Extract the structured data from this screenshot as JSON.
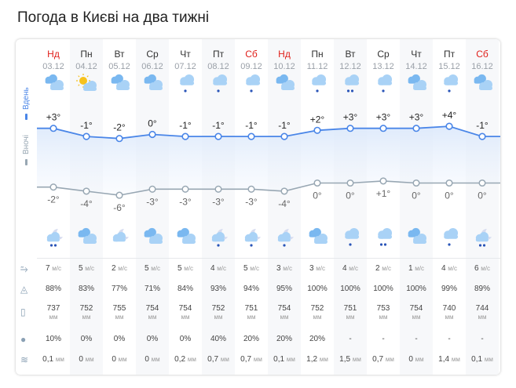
{
  "title": "Погода в Києві на два тижні",
  "labels": {
    "day": "Вдень",
    "night": "Вночі"
  },
  "colors": {
    "day_line": "#4a86e8",
    "night_line": "#98a7b3",
    "weekend": "#e0201b",
    "icon_cloud": "#7ab8f0",
    "icon_sun": "#f7c21d"
  },
  "row_icons": [
    "wind-icon",
    "humidity-icon",
    "pressure-icon",
    "precip-probability-icon",
    "precipitation-icon"
  ],
  "days": [
    {
      "name": "Нд",
      "date": "03.12",
      "weekend": true,
      "day_icon": "clouds",
      "night_icon": "moon-cloud-snow-2",
      "t_day": "+3°",
      "t_night": "-2°",
      "td": 3,
      "tn": -2,
      "wind": "7",
      "wind_u": "м/с",
      "hum": "88%",
      "pres": "737",
      "pres_u": "мм",
      "prob": "10%",
      "prec": "0,1",
      "prec_u": "мм"
    },
    {
      "name": "Пн",
      "date": "04.12",
      "day_icon": "sun-cloud",
      "night_icon": "clouds",
      "t_day": "-1°",
      "t_night": "-4°",
      "td": -1,
      "tn": -4,
      "wind": "5",
      "wind_u": "м/с",
      "hum": "83%",
      "pres": "752",
      "pres_u": "мм",
      "prob": "0%",
      "prec": "0",
      "prec_u": "мм"
    },
    {
      "name": "Вт",
      "date": "05.12",
      "day_icon": "clouds",
      "night_icon": "moon-cloud",
      "t_day": "-2°",
      "t_night": "-6°",
      "td": -2,
      "tn": -6,
      "wind": "2",
      "wind_u": "м/с",
      "hum": "77%",
      "pres": "755",
      "pres_u": "мм",
      "prob": "0%",
      "prec": "0",
      "prec_u": "мм"
    },
    {
      "name": "Ср",
      "date": "06.12",
      "day_icon": "clouds",
      "night_icon": "clouds",
      "t_day": "0°",
      "t_night": "-3°",
      "td": 0,
      "tn": -3,
      "wind": "5",
      "wind_u": "м/с",
      "hum": "71%",
      "pres": "754",
      "pres_u": "мм",
      "prob": "0%",
      "prec": "0",
      "prec_u": "мм"
    },
    {
      "name": "Чт",
      "date": "07.12",
      "day_icon": "cloud-snow",
      "night_icon": "clouds",
      "t_day": "-1°",
      "t_night": "-3°",
      "td": -1,
      "tn": -3,
      "wind": "5",
      "wind_u": "м/с",
      "hum": "84%",
      "pres": "754",
      "pres_u": "мм",
      "prob": "0%",
      "prec": "0,2",
      "prec_u": "мм"
    },
    {
      "name": "Пт",
      "date": "08.12",
      "day_icon": "cloud-snow",
      "night_icon": "moon-cloud-snow",
      "t_day": "-1°",
      "t_night": "-3°",
      "td": -1,
      "tn": -3,
      "wind": "4",
      "wind_u": "м/с",
      "hum": "93%",
      "pres": "752",
      "pres_u": "мм",
      "prob": "40%",
      "prec": "0,7",
      "prec_u": "мм"
    },
    {
      "name": "Сб",
      "date": "09.12",
      "weekend": true,
      "day_icon": "cloud-snow",
      "night_icon": "moon-cloud-snow",
      "t_day": "-1°",
      "t_night": "-3°",
      "td": -1,
      "tn": -3,
      "wind": "5",
      "wind_u": "м/с",
      "hum": "94%",
      "pres": "751",
      "pres_u": "мм",
      "prob": "20%",
      "prec": "0,7",
      "prec_u": "мм"
    },
    {
      "name": "Нд",
      "date": "10.12",
      "weekend": true,
      "day_icon": "clouds",
      "night_icon": "moon-cloud-snow",
      "t_day": "-1°",
      "t_night": "-4°",
      "td": -1,
      "tn": -4,
      "wind": "3",
      "wind_u": "м/с",
      "hum": "95%",
      "pres": "754",
      "pres_u": "мм",
      "prob": "20%",
      "prec": "0,1",
      "prec_u": "мм"
    },
    {
      "name": "Пн",
      "date": "11.12",
      "day_icon": "cloud-rain",
      "night_icon": "clouds",
      "t_day": "+2°",
      "t_night": "0°",
      "td": 2,
      "tn": 0,
      "wind": "3",
      "wind_u": "м/с",
      "hum": "100%",
      "pres": "752",
      "pres_u": "мм",
      "prob": "20%",
      "prec": "1,2",
      "prec_u": "мм"
    },
    {
      "name": "Вт",
      "date": "12.12",
      "day_icon": "cloud-rain-2",
      "night_icon": "cloud-rain",
      "t_day": "+3°",
      "t_night": "0°",
      "td": 3,
      "tn": 0,
      "wind": "4",
      "wind_u": "м/с",
      "hum": "100%",
      "pres": "751",
      "pres_u": "мм",
      "prob": "-",
      "prec": "1,5",
      "prec_u": "мм"
    },
    {
      "name": "Ср",
      "date": "13.12",
      "day_icon": "cloud-rain",
      "night_icon": "cloud-rain-2",
      "t_day": "+3°",
      "t_night": "+1°",
      "td": 3,
      "tn": 1,
      "wind": "2",
      "wind_u": "м/с",
      "hum": "100%",
      "pres": "753",
      "pres_u": "мм",
      "prob": "-",
      "prec": "0,7",
      "prec_u": "мм"
    },
    {
      "name": "Чт",
      "date": "14.12",
      "day_icon": "clouds",
      "night_icon": "clouds",
      "t_day": "+3°",
      "t_night": "0°",
      "td": 3,
      "tn": 0,
      "wind": "1",
      "wind_u": "м/с",
      "hum": "100%",
      "pres": "754",
      "pres_u": "мм",
      "prob": "-",
      "prec": "0",
      "prec_u": "мм"
    },
    {
      "name": "Пт",
      "date": "15.12",
      "day_icon": "cloud-rain",
      "night_icon": "cloud-rain",
      "t_day": "+4°",
      "t_night": "0°",
      "td": 4,
      "tn": 0,
      "wind": "4",
      "wind_u": "м/с",
      "hum": "99%",
      "pres": "740",
      "pres_u": "мм",
      "prob": "-",
      "prec": "1,4",
      "prec_u": "мм"
    },
    {
      "name": "Сб",
      "date": "16.12",
      "weekend": true,
      "day_icon": "clouds",
      "night_icon": "moon-cloud-rain-2",
      "t_day": "-1°",
      "t_night": "0°",
      "td": -1,
      "tn": 0,
      "wind": "6",
      "wind_u": "м/с",
      "hum": "89%",
      "pres": "744",
      "pres_u": "мм",
      "prob": "-",
      "prec": "0,1",
      "prec_u": "мм"
    }
  ]
}
